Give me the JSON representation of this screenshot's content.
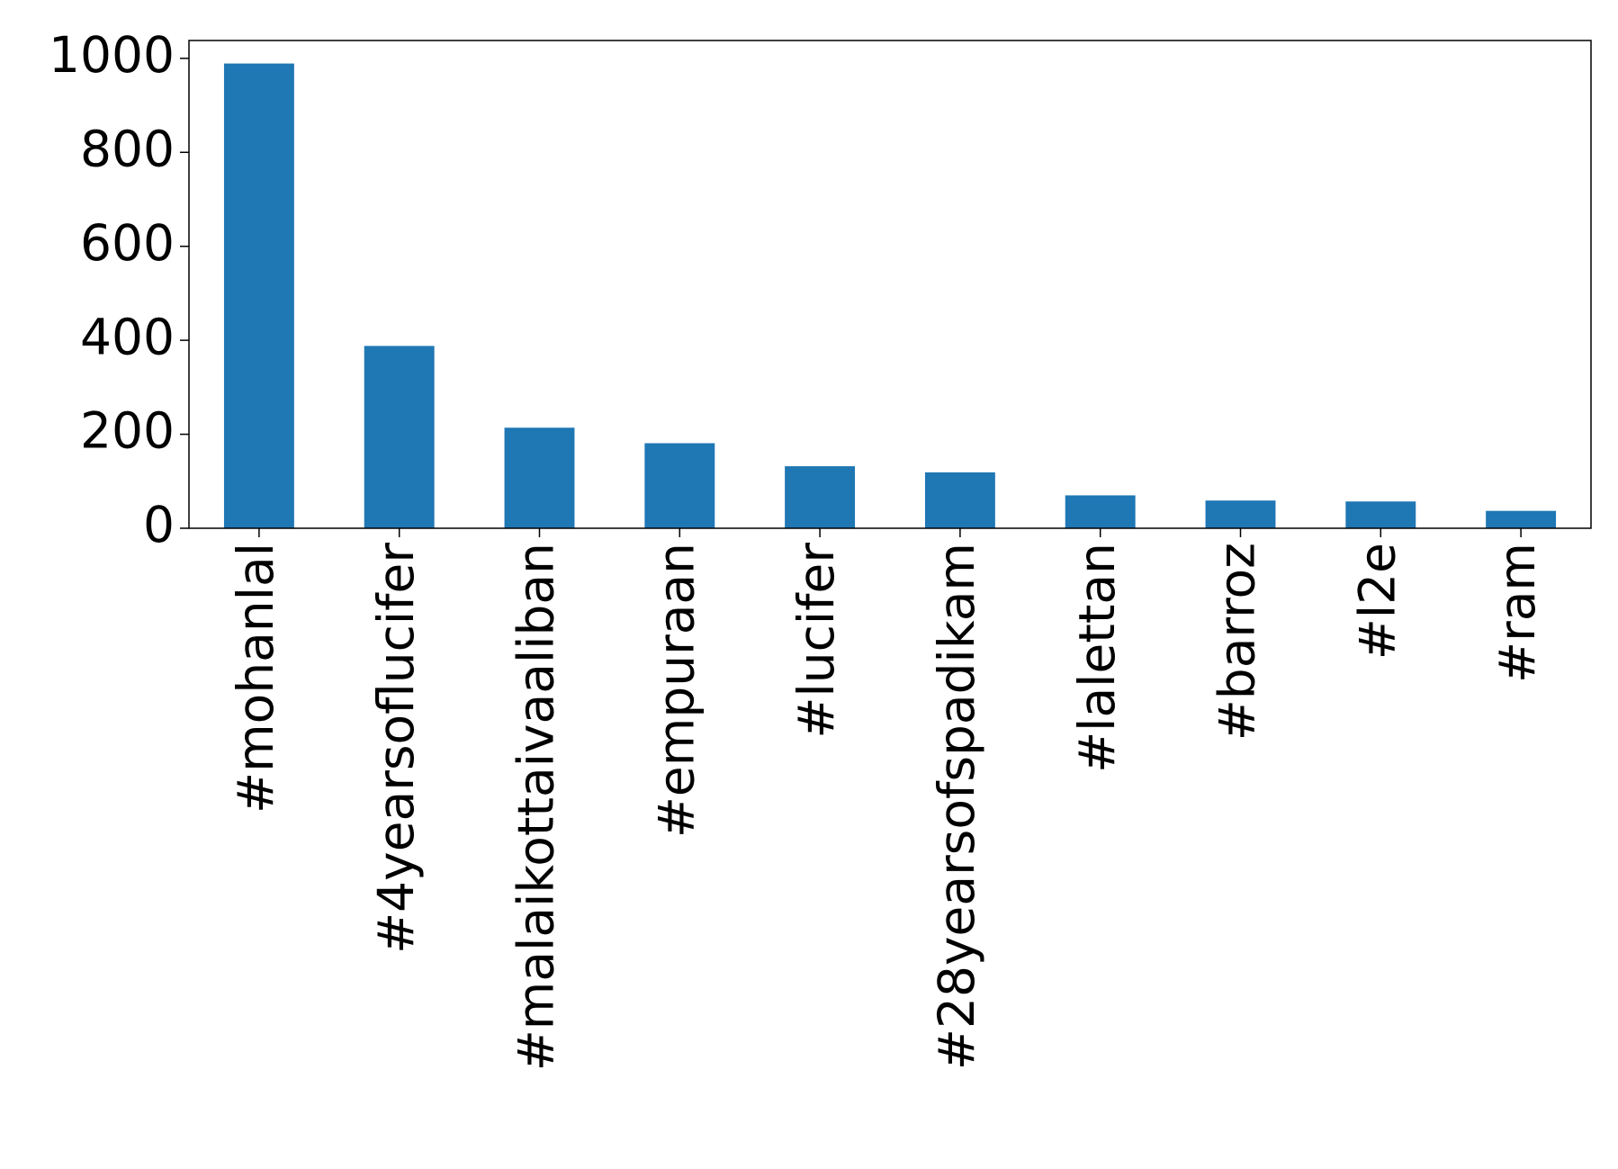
{
  "chart_data": {
    "type": "bar",
    "categories": [
      "#mohanlal",
      "#4yearsoflucifer",
      "#malaikottaivaaliban",
      "#empuraan",
      "#lucifer",
      "#28yearsofspadikam",
      "#lalettan",
      "#barroz",
      "#l2e",
      "#ram"
    ],
    "values": [
      989,
      388,
      214,
      181,
      132,
      119,
      70,
      59,
      57,
      37
    ],
    "color": "#1f77b4",
    "ylim": [
      0,
      1038
    ],
    "yticks": [
      0,
      200,
      400,
      600,
      800,
      1000
    ],
    "grid": false
  }
}
